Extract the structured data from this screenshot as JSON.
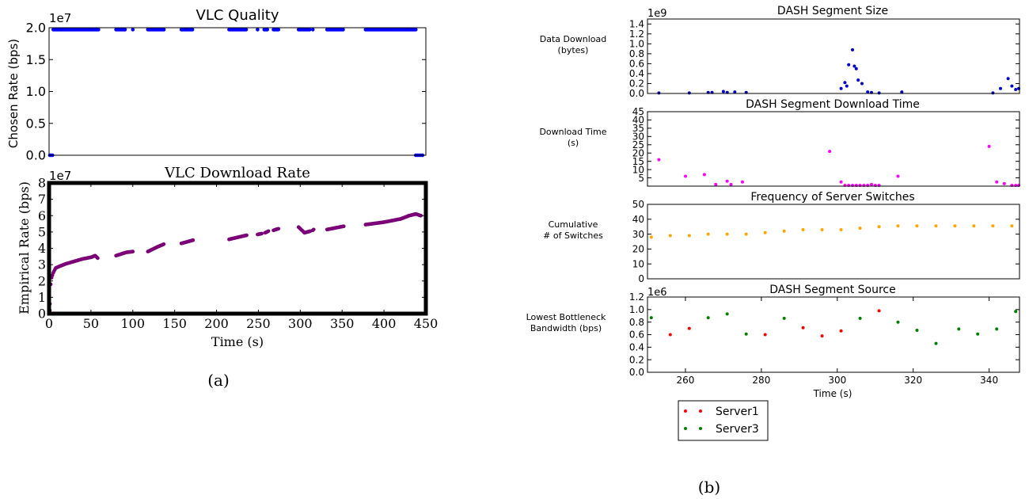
{
  "captions": {
    "a": "(a)",
    "b": "(b)"
  },
  "chart_data": [
    {
      "type": "scatter",
      "title": "VLC Quality",
      "xlabel": "",
      "ylabel": "Chosen Rate (bps)",
      "multiplier": "1e7",
      "xlim": [
        0,
        450
      ],
      "ylim": [
        0,
        2.0
      ],
      "yticks": [
        "0.0",
        "0.5",
        "1.0",
        "1.5",
        "2.0"
      ],
      "xticks": [],
      "grid": false,
      "color": "#0000ff",
      "points": [
        [
          0,
          0
        ],
        [
          2,
          0
        ],
        [
          4,
          0
        ],
        [
          438,
          0
        ],
        [
          440,
          0
        ],
        [
          442,
          0
        ],
        [
          444,
          0
        ],
        [
          446,
          0
        ]
      ],
      "high_runs": [
        [
          5,
          60
        ],
        [
          80,
          92
        ],
        [
          100,
          100
        ],
        [
          118,
          138
        ],
        [
          158,
          172
        ],
        [
          215,
          236
        ],
        [
          249,
          249
        ],
        [
          257,
          261
        ],
        [
          268,
          274
        ],
        [
          298,
          312
        ],
        [
          315,
          316
        ],
        [
          332,
          352
        ],
        [
          378,
          438
        ]
      ],
      "high_value": 1.97
    },
    {
      "type": "scatter",
      "title": "VLC Download Rate",
      "xlabel": "Time (s)",
      "ylabel": "Empirical Rate (bps)",
      "multiplier": "1e7",
      "xlim": [
        0,
        450
      ],
      "ylim": [
        0,
        8
      ],
      "yticks": [
        "0",
        "1",
        "2",
        "3",
        "4",
        "5",
        "6",
        "7",
        "8"
      ],
      "xticks": [
        "0",
        "50",
        "100",
        "150",
        "200",
        "250",
        "300",
        "350",
        "400",
        "450"
      ],
      "grid": false,
      "color": "#7b0077",
      "segments": [
        [
          [
            0,
            0.2
          ],
          [
            1,
            0.6
          ],
          [
            2,
            1.8
          ],
          [
            3,
            2.2
          ],
          [
            5,
            2.5
          ],
          [
            8,
            2.8
          ],
          [
            15,
            2.95
          ],
          [
            20,
            3.05
          ],
          [
            30,
            3.2
          ],
          [
            40,
            3.35
          ],
          [
            50,
            3.45
          ],
          [
            55,
            3.55
          ],
          [
            58,
            3.4
          ]
        ],
        [
          [
            80,
            3.55
          ],
          [
            92,
            3.75
          ],
          [
            100,
            3.8
          ]
        ],
        [
          [
            118,
            3.8
          ],
          [
            130,
            4.1
          ],
          [
            137,
            4.25
          ]
        ],
        [
          [
            158,
            4.3
          ],
          [
            172,
            4.5
          ]
        ],
        [
          [
            215,
            4.55
          ],
          [
            236,
            4.8
          ]
        ],
        [
          [
            249,
            4.85
          ],
          [
            254,
            4.9
          ]
        ],
        [
          [
            258,
            4.95
          ],
          [
            262,
            5.05
          ]
        ],
        [
          [
            268,
            5.1
          ],
          [
            274,
            5.2
          ]
        ],
        [
          [
            298,
            5.3
          ],
          [
            302,
            5.1
          ],
          [
            305,
            4.95
          ],
          [
            312,
            5.05
          ]
        ],
        [
          [
            315,
            5.1
          ],
          [
            316,
            5.15
          ]
        ],
        [
          [
            332,
            5.15
          ],
          [
            352,
            5.35
          ]
        ],
        [
          [
            378,
            5.45
          ],
          [
            400,
            5.6
          ],
          [
            420,
            5.8
          ],
          [
            430,
            6.0
          ],
          [
            438,
            6.1
          ],
          [
            444,
            6.0
          ]
        ]
      ]
    },
    {
      "type": "scatter",
      "title": "DASH Segment Size",
      "ylabel": [
        "Data Download",
        "(bytes)"
      ],
      "multiplier": "1e9",
      "xlim": [
        250,
        348
      ],
      "ylim": [
        0,
        1.5
      ],
      "yticks": [
        "0.0",
        "0.2",
        "0.4",
        "0.6",
        "0.8",
        "1.0",
        "1.2",
        "1.4"
      ],
      "color": "#0000cc",
      "points": [
        [
          253,
          0.01
        ],
        [
          261,
          0.01
        ],
        [
          266,
          0.02
        ],
        [
          267,
          0.02
        ],
        [
          270,
          0.04
        ],
        [
          271,
          0.02
        ],
        [
          273,
          0.03
        ],
        [
          276,
          0.02
        ],
        [
          301,
          0.1
        ],
        [
          302,
          0.22
        ],
        [
          302.5,
          0.15
        ],
        [
          303,
          0.58
        ],
        [
          304,
          0.88
        ],
        [
          304.5,
          0.55
        ],
        [
          305,
          0.5
        ],
        [
          305.5,
          0.27
        ],
        [
          306.5,
          0.2
        ],
        [
          308,
          0.03
        ],
        [
          309,
          0.02
        ],
        [
          311,
          0.01
        ],
        [
          317,
          0.03
        ],
        [
          341,
          0.01
        ],
        [
          343,
          0.1
        ],
        [
          345,
          0.3
        ],
        [
          346,
          0.15
        ],
        [
          347,
          0.08
        ],
        [
          348,
          0.1
        ]
      ]
    },
    {
      "type": "scatter",
      "title": "DASH Segment Download Time",
      "ylabel": [
        "Download Time",
        "(s)"
      ],
      "xlim": [
        250,
        348
      ],
      "ylim": [
        0,
        45
      ],
      "yticks": [
        "5",
        "10",
        "15",
        "20",
        "25",
        "30",
        "35",
        "40",
        "45"
      ],
      "color": "#ff00ff",
      "points": [
        [
          253,
          16
        ],
        [
          260,
          6
        ],
        [
          265,
          7
        ],
        [
          268,
          1
        ],
        [
          271,
          3
        ],
        [
          272,
          1
        ],
        [
          275,
          2.5
        ],
        [
          298,
          21
        ],
        [
          301,
          2.5
        ],
        [
          302,
          0.5
        ],
        [
          303,
          0.5
        ],
        [
          304,
          0.5
        ],
        [
          305,
          0.5
        ],
        [
          306,
          0.5
        ],
        [
          307,
          0.5
        ],
        [
          308,
          0.5
        ],
        [
          309,
          1
        ],
        [
          310,
          0.5
        ],
        [
          311,
          0.5
        ],
        [
          316,
          6
        ],
        [
          340,
          24
        ],
        [
          342,
          2.5
        ],
        [
          344,
          1.5
        ],
        [
          346,
          0.5
        ],
        [
          347,
          0.5
        ],
        [
          348,
          0.5
        ]
      ]
    },
    {
      "type": "scatter",
      "title": "Frequency of Server Switches",
      "ylabel": [
        "Cumulative",
        "# of Switches"
      ],
      "xlim": [
        250,
        348
      ],
      "ylim": [
        0,
        50
      ],
      "yticks": [
        "0",
        "10",
        "20",
        "30",
        "40",
        "50"
      ],
      "color": "#ffa500",
      "points": [
        [
          251,
          28
        ],
        [
          256,
          29
        ],
        [
          261,
          29
        ],
        [
          266,
          30
        ],
        [
          271,
          30
        ],
        [
          276,
          30
        ],
        [
          281,
          31
        ],
        [
          286,
          32
        ],
        [
          291,
          33
        ],
        [
          296,
          33
        ],
        [
          301,
          33
        ],
        [
          306,
          34
        ],
        [
          311,
          35
        ],
        [
          316,
          35.5
        ],
        [
          321,
          35.5
        ],
        [
          326,
          35.5
        ],
        [
          331,
          35.5
        ],
        [
          336,
          35.5
        ],
        [
          341,
          35.5
        ],
        [
          346,
          35.5
        ]
      ]
    },
    {
      "type": "scatter",
      "title": "DASH Segment Source",
      "ylabel": [
        "Lowest Bottleneck",
        "Bandwidth (bps)"
      ],
      "xlabel": "Time (s)",
      "multiplier": "1e6",
      "xlim": [
        250,
        348
      ],
      "ylim": [
        0,
        1.2
      ],
      "yticks": [
        "0.0",
        "0.2",
        "0.4",
        "0.6",
        "0.8",
        "1.0",
        "1.2"
      ],
      "xticks": [
        "260",
        "280",
        "300",
        "320",
        "340"
      ],
      "legend": "below",
      "series": [
        {
          "name": "Server1",
          "color": "#ff0000",
          "points": [
            [
              256,
              0.6
            ],
            [
              261,
              0.7
            ],
            [
              281,
              0.6
            ],
            [
              291,
              0.71
            ],
            [
              296,
              0.58
            ],
            [
              301,
              0.66
            ],
            [
              311,
              0.98
            ]
          ]
        },
        {
          "name": "Server3",
          "color": "#008000",
          "points": [
            [
              251,
              0.87
            ],
            [
              266,
              0.87
            ],
            [
              271,
              0.93
            ],
            [
              276,
              0.61
            ],
            [
              286,
              0.86
            ],
            [
              306,
              0.86
            ],
            [
              316,
              0.8
            ],
            [
              321,
              0.67
            ],
            [
              326,
              0.46
            ],
            [
              332,
              0.69
            ],
            [
              337,
              0.61
            ],
            [
              342,
              0.69
            ],
            [
              347,
              0.97
            ]
          ]
        }
      ]
    }
  ]
}
